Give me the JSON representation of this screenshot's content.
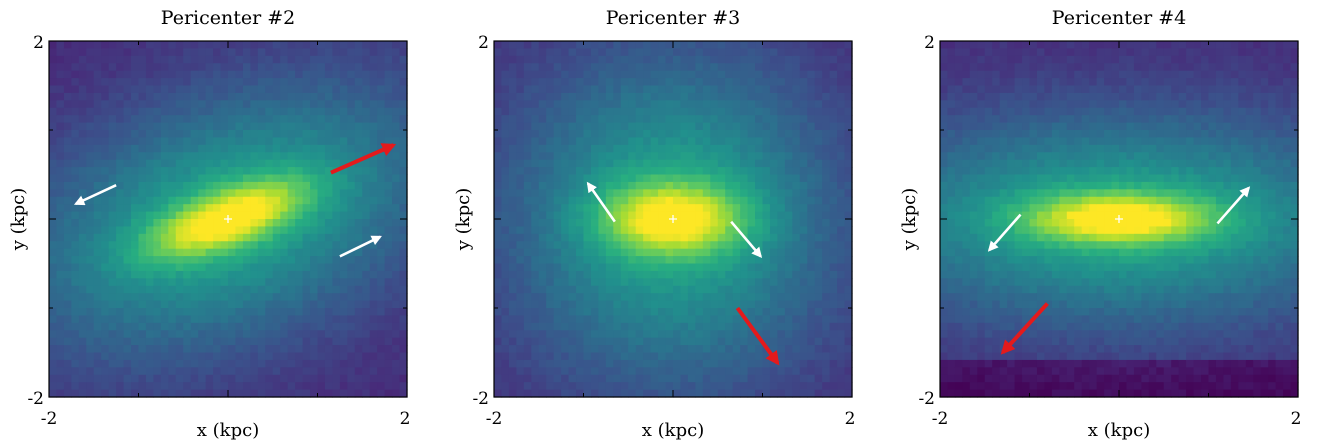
{
  "figure": {
    "colormap": "viridis",
    "frame_color": "#000000",
    "center_marker_color": "#ffffff",
    "arrow_white": "#ffffff",
    "arrow_red": "#e41a1c"
  },
  "chart_data": [
    {
      "type": "heatmap",
      "title": "Pericenter #2",
      "xlabel": "x (kpc)",
      "ylabel": "y (kpc)",
      "xlim": [
        -2,
        2
      ],
      "ylim": [
        -2,
        2
      ],
      "xtick_labels": [
        "-2",
        "2"
      ],
      "ytick_labels": [
        "-2",
        "2"
      ],
      "density": {
        "major_axis_angle_deg": 20,
        "core_sigma_major": 0.65,
        "core_sigma_minor": 0.22,
        "halo_sigma_major": 1.7,
        "halo_sigma_minor": 0.95
      },
      "center_marker": [
        0,
        0
      ],
      "arrows": [
        {
          "color": "white",
          "from": [
            -1.25,
            0.38
          ],
          "to": [
            -1.7,
            0.17
          ]
        },
        {
          "color": "white",
          "from": [
            1.25,
            -0.42
          ],
          "to": [
            1.7,
            -0.2
          ]
        },
        {
          "color": "red",
          "from": [
            1.15,
            0.52
          ],
          "to": [
            1.85,
            0.83
          ]
        }
      ]
    },
    {
      "type": "heatmap",
      "title": "Pericenter #3",
      "xlabel": "x (kpc)",
      "ylabel": "y (kpc)",
      "xlim": [
        -2,
        2
      ],
      "ylim": [
        -2,
        2
      ],
      "xtick_labels": [
        "-2",
        "2"
      ],
      "ytick_labels": [
        "-2",
        "2"
      ],
      "density": {
        "major_axis_angle_deg": 0,
        "core_sigma_major": 0.55,
        "core_sigma_minor": 0.28,
        "halo_sigma_major": 1.3,
        "halo_sigma_minor": 1.3,
        "twist_deg": -55
      },
      "center_marker": [
        0,
        0
      ],
      "arrows": [
        {
          "color": "white",
          "from": [
            -0.65,
            -0.03
          ],
          "to": [
            -0.95,
            0.4
          ]
        },
        {
          "color": "white",
          "from": [
            0.65,
            -0.03
          ],
          "to": [
            0.98,
            -0.42
          ]
        },
        {
          "color": "red",
          "from": [
            0.72,
            -1.0
          ],
          "to": [
            1.17,
            -1.62
          ]
        }
      ]
    },
    {
      "type": "heatmap",
      "title": "Pericenter #4",
      "xlabel": "x (kpc)",
      "ylabel": "y (kpc)",
      "xlim": [
        -2,
        2
      ],
      "ylim": [
        -2,
        2
      ],
      "xtick_labels": [
        "-2",
        "2"
      ],
      "ytick_labels": [
        "-2",
        "2"
      ],
      "density": {
        "major_axis_angle_deg": 0,
        "core_sigma_major": 0.75,
        "core_sigma_minor": 0.2,
        "halo_sigma_major": 2.1,
        "halo_sigma_minor": 0.85
      },
      "center_marker": [
        0,
        0
      ],
      "arrows": [
        {
          "color": "white",
          "from": [
            -1.1,
            0.05
          ],
          "to": [
            -1.45,
            -0.35
          ]
        },
        {
          "color": "white",
          "from": [
            1.1,
            -0.05
          ],
          "to": [
            1.45,
            0.35
          ]
        },
        {
          "color": "red",
          "from": [
            -0.8,
            -0.95
          ],
          "to": [
            -1.3,
            -1.5
          ]
        }
      ]
    }
  ]
}
